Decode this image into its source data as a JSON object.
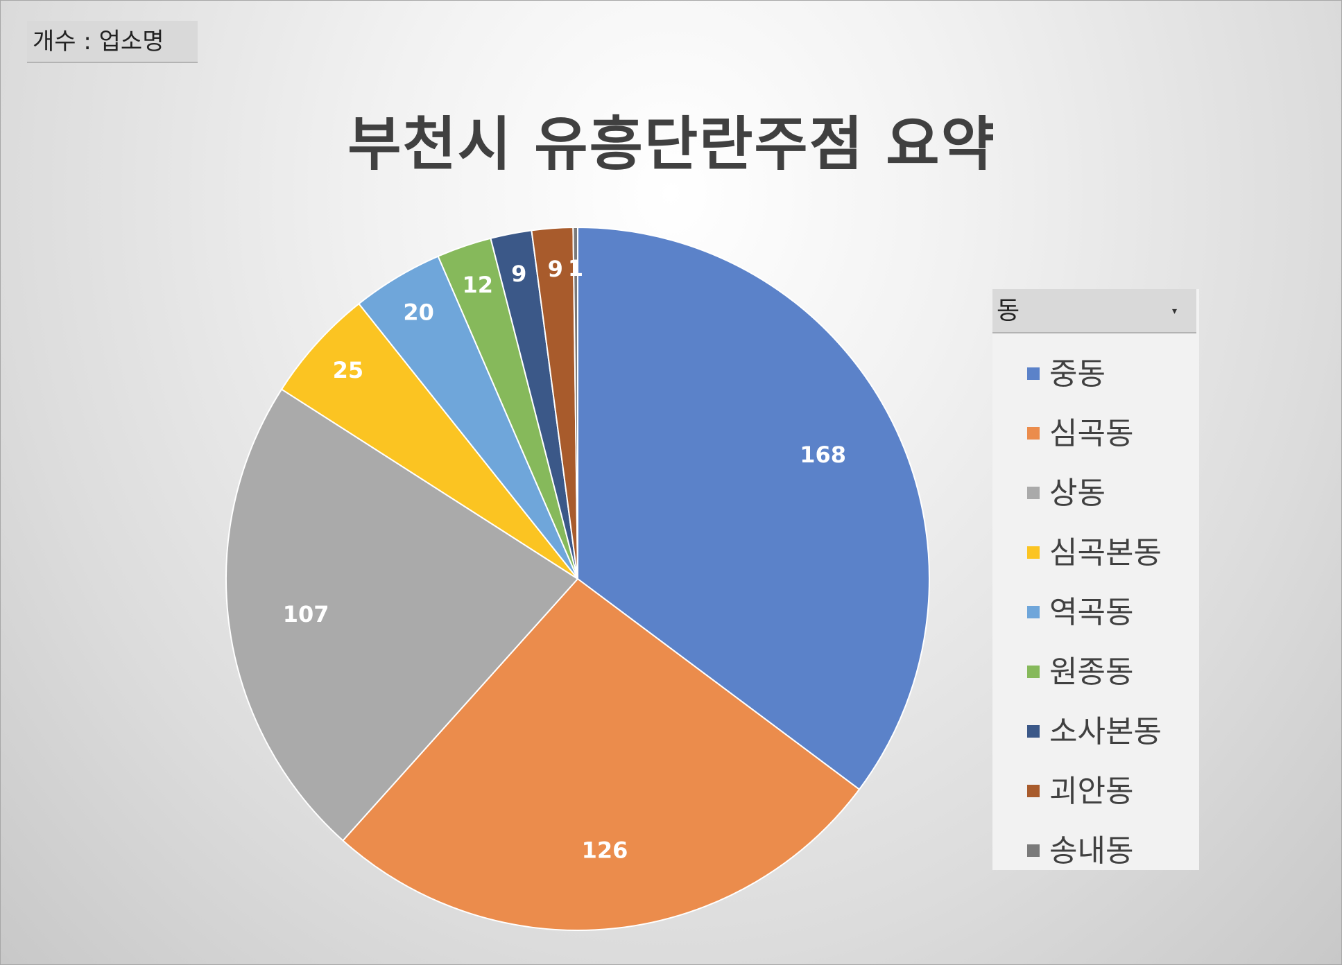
{
  "value_field_label": "개수 : 업소명",
  "legend_field_label": "동",
  "chart_data": {
    "type": "pie",
    "title": "부천시 유흥단란주점 요약",
    "legend_placement": "right",
    "categories": [
      "중동",
      "심곡동",
      "상동",
      "심곡본동",
      "역곡동",
      "원종동",
      "소사본동",
      "괴안동",
      "송내동"
    ],
    "values": [
      168,
      126,
      107,
      25,
      20,
      12,
      9,
      9,
      1
    ],
    "colors": [
      "#5b82c9",
      "#eb8c4c",
      "#aaaaaa",
      "#fbc422",
      "#6fa6da",
      "#86b95b",
      "#3b5888",
      "#a85b2c",
      "#7a7a7a"
    ]
  }
}
